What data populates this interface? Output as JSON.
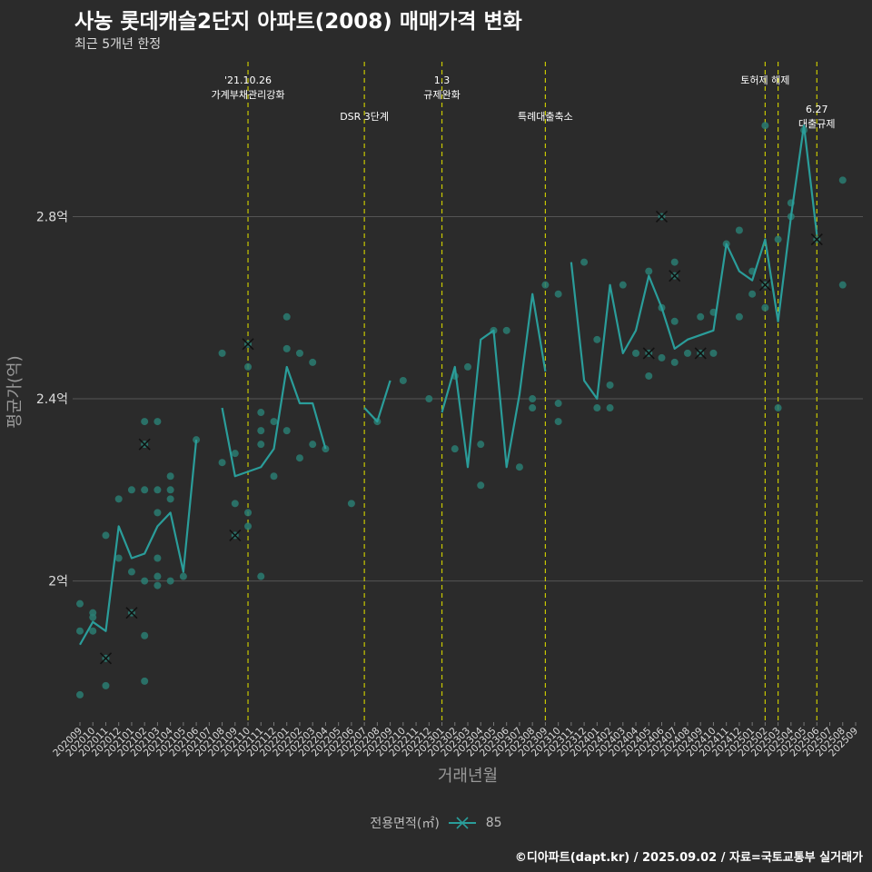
{
  "title": "사농 롯데캐슬2단지 아파트(2008) 매매가격 변화",
  "subtitle": "최근 5개년 한정",
  "caption": "©디아파트(dapt.kr) / 2025.09.02 / 자료=국토교통부 실거래가",
  "legend": {
    "title": "전용면적(㎡)",
    "item": "85"
  },
  "colors": {
    "background": "#2b2b2b",
    "line": "#2a9d9a",
    "point": "#2a7d72",
    "event": "#c8c800",
    "grid": "#555555"
  },
  "chart_data": {
    "type": "line",
    "xlabel": "거래년월",
    "ylabel": "평균가(억)",
    "ylim": [
      1.69,
      3.14
    ],
    "y_ticks": [
      2.0,
      2.4,
      2.8
    ],
    "y_tick_labels": [
      "2억",
      "2.4억",
      "2.8억"
    ],
    "grid": true,
    "legend_position": "bottom",
    "categories": [
      "202009",
      "202010",
      "202011",
      "202012",
      "202101",
      "202102",
      "202103",
      "202104",
      "202105",
      "202106",
      "202107",
      "202108",
      "202109",
      "202110",
      "202111",
      "202112",
      "202201",
      "202202",
      "202203",
      "202204",
      "202205",
      "202206",
      "202207",
      "202208",
      "202209",
      "202210",
      "202211",
      "202212",
      "202301",
      "202302",
      "202303",
      "202304",
      "202305",
      "202306",
      "202307",
      "202308",
      "202309",
      "202310",
      "202311",
      "202312",
      "202401",
      "202402",
      "202403",
      "202404",
      "202405",
      "202406",
      "202407",
      "202408",
      "202409",
      "202410",
      "202411",
      "202412",
      "202501",
      "202502",
      "202503",
      "202504",
      "202505",
      "202506",
      "202507",
      "202508",
      "202509"
    ],
    "series": [
      {
        "name": "85",
        "values": [
          1.86,
          1.91,
          1.89,
          2.12,
          2.05,
          2.06,
          2.12,
          2.15,
          2.02,
          2.31,
          null,
          2.38,
          2.23,
          2.24,
          2.25,
          2.29,
          2.47,
          2.39,
          2.39,
          2.29,
          null,
          null,
          2.38,
          2.35,
          2.44,
          null,
          null,
          null,
          2.37,
          2.47,
          2.25,
          2.53,
          2.55,
          2.25,
          2.41,
          2.63,
          2.46,
          null,
          2.7,
          2.44,
          2.4,
          2.65,
          2.5,
          2.55,
          2.67,
          2.6,
          2.51,
          2.53,
          2.54,
          2.55,
          2.74,
          2.68,
          2.66,
          2.75,
          2.57,
          2.8,
          3.0,
          2.76,
          null,
          null,
          null
        ]
      }
    ],
    "scatter": [
      {
        "x": "202009",
        "y": 1.95
      },
      {
        "x": "202009",
        "y": 1.89
      },
      {
        "x": "202009",
        "y": 1.75
      },
      {
        "x": "202010",
        "y": 1.93
      },
      {
        "x": "202010",
        "y": 1.92
      },
      {
        "x": "202010",
        "y": 1.89
      },
      {
        "x": "202011",
        "y": 1.83,
        "mark": "x"
      },
      {
        "x": "202011",
        "y": 1.77
      },
      {
        "x": "202011",
        "y": 2.1
      },
      {
        "x": "202012",
        "y": 2.18
      },
      {
        "x": "202012",
        "y": 2.05
      },
      {
        "x": "202101",
        "y": 1.93,
        "mark": "x"
      },
      {
        "x": "202101",
        "y": 2.2
      },
      {
        "x": "202101",
        "y": 2.02
      },
      {
        "x": "202102",
        "y": 2.35
      },
      {
        "x": "202102",
        "y": 2.3,
        "mark": "x"
      },
      {
        "x": "202102",
        "y": 2.2
      },
      {
        "x": "202102",
        "y": 2.0
      },
      {
        "x": "202102",
        "y": 1.88
      },
      {
        "x": "202102",
        "y": 1.78
      },
      {
        "x": "202103",
        "y": 2.35
      },
      {
        "x": "202103",
        "y": 2.2
      },
      {
        "x": "202103",
        "y": 2.15
      },
      {
        "x": "202103",
        "y": 2.05
      },
      {
        "x": "202103",
        "y": 2.01
      },
      {
        "x": "202103",
        "y": 1.99
      },
      {
        "x": "202104",
        "y": 2.23
      },
      {
        "x": "202104",
        "y": 2.2
      },
      {
        "x": "202104",
        "y": 2.18
      },
      {
        "x": "202104",
        "y": 2.0
      },
      {
        "x": "202105",
        "y": 2.01
      },
      {
        "x": "202106",
        "y": 2.31
      },
      {
        "x": "202108",
        "y": 2.5
      },
      {
        "x": "202108",
        "y": 2.26
      },
      {
        "x": "202109",
        "y": 2.28
      },
      {
        "x": "202109",
        "y": 2.17
      },
      {
        "x": "202109",
        "y": 2.1,
        "mark": "x"
      },
      {
        "x": "202110",
        "y": 2.52,
        "mark": "x"
      },
      {
        "x": "202110",
        "y": 2.47
      },
      {
        "x": "202110",
        "y": 2.15
      },
      {
        "x": "202110",
        "y": 2.12
      },
      {
        "x": "202111",
        "y": 2.37
      },
      {
        "x": "202111",
        "y": 2.33
      },
      {
        "x": "202111",
        "y": 2.3
      },
      {
        "x": "202111",
        "y": 2.01
      },
      {
        "x": "202112",
        "y": 2.35
      },
      {
        "x": "202112",
        "y": 2.23
      },
      {
        "x": "202201",
        "y": 2.58
      },
      {
        "x": "202201",
        "y": 2.51
      },
      {
        "x": "202201",
        "y": 2.33
      },
      {
        "x": "202202",
        "y": 2.5
      },
      {
        "x": "202202",
        "y": 2.27
      },
      {
        "x": "202203",
        "y": 2.48
      },
      {
        "x": "202203",
        "y": 2.3
      },
      {
        "x": "202204",
        "y": 2.29
      },
      {
        "x": "202206",
        "y": 2.17
      },
      {
        "x": "202208",
        "y": 2.35
      },
      {
        "x": "202210",
        "y": 2.44
      },
      {
        "x": "202212",
        "y": 2.4
      },
      {
        "x": "202302",
        "y": 2.45
      },
      {
        "x": "202302",
        "y": 2.29
      },
      {
        "x": "202303",
        "y": 2.47
      },
      {
        "x": "202304",
        "y": 2.3
      },
      {
        "x": "202304",
        "y": 2.21
      },
      {
        "x": "202305",
        "y": 2.55
      },
      {
        "x": "202306",
        "y": 2.55
      },
      {
        "x": "202307",
        "y": 2.25
      },
      {
        "x": "202308",
        "y": 2.4
      },
      {
        "x": "202308",
        "y": 2.38
      },
      {
        "x": "202309",
        "y": 2.65
      },
      {
        "x": "202310",
        "y": 2.63
      },
      {
        "x": "202310",
        "y": 2.39
      },
      {
        "x": "202310",
        "y": 2.35
      },
      {
        "x": "202312",
        "y": 2.7
      },
      {
        "x": "202401",
        "y": 2.53
      },
      {
        "x": "202401",
        "y": 2.38
      },
      {
        "x": "202402",
        "y": 2.43
      },
      {
        "x": "202402",
        "y": 2.38
      },
      {
        "x": "202403",
        "y": 2.65
      },
      {
        "x": "202404",
        "y": 2.5
      },
      {
        "x": "202405",
        "y": 2.68
      },
      {
        "x": "202405",
        "y": 2.5,
        "mark": "x"
      },
      {
        "x": "202405",
        "y": 2.45
      },
      {
        "x": "202406",
        "y": 2.8,
        "mark": "x"
      },
      {
        "x": "202406",
        "y": 2.6
      },
      {
        "x": "202406",
        "y": 2.49
      },
      {
        "x": "202407",
        "y": 2.7
      },
      {
        "x": "202407",
        "y": 2.67,
        "mark": "x"
      },
      {
        "x": "202407",
        "y": 2.57
      },
      {
        "x": "202407",
        "y": 2.48
      },
      {
        "x": "202408",
        "y": 2.5
      },
      {
        "x": "202409",
        "y": 2.58
      },
      {
        "x": "202409",
        "y": 2.5,
        "mark": "x"
      },
      {
        "x": "202410",
        "y": 2.59
      },
      {
        "x": "202410",
        "y": 2.5
      },
      {
        "x": "202411",
        "y": 2.74
      },
      {
        "x": "202412",
        "y": 2.77
      },
      {
        "x": "202412",
        "y": 2.58
      },
      {
        "x": "202501",
        "y": 2.68
      },
      {
        "x": "202501",
        "y": 2.63
      },
      {
        "x": "202502",
        "y": 3.0
      },
      {
        "x": "202502",
        "y": 2.65,
        "mark": "x"
      },
      {
        "x": "202502",
        "y": 2.6
      },
      {
        "x": "202503",
        "y": 2.75
      },
      {
        "x": "202503",
        "y": 2.38
      },
      {
        "x": "202504",
        "y": 2.83
      },
      {
        "x": "202504",
        "y": 2.8
      },
      {
        "x": "202505",
        "y": 2.99
      },
      {
        "x": "202506",
        "y": 2.75,
        "mark": "x"
      },
      {
        "x": "202508",
        "y": 2.88
      },
      {
        "x": "202508",
        "y": 2.65
      }
    ],
    "events": [
      {
        "x": "202110",
        "label_lines": [
          "'21.10.26",
          "가계부채관리강화"
        ],
        "row": 0
      },
      {
        "x": "202207",
        "label_lines": [
          "DSR 3단계"
        ],
        "row": 1
      },
      {
        "x": "202301",
        "label_lines": [
          "1.3",
          "규제완화"
        ],
        "row": 0
      },
      {
        "x": "202309",
        "label_lines": [
          "특례대출축소"
        ],
        "row": 1
      },
      {
        "x": "202502",
        "label_lines": [
          "토허제 해제"
        ],
        "row": 0
      },
      {
        "x": "202503",
        "label_lines": [],
        "row": 0
      },
      {
        "x": "202506",
        "label_lines": [
          "6.27",
          "대출규제"
        ],
        "row": 2
      }
    ]
  }
}
